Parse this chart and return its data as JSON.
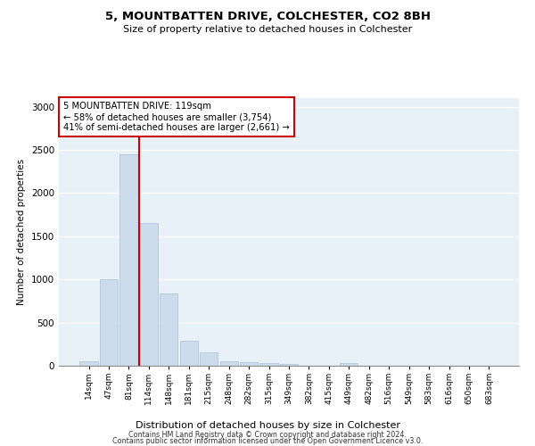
{
  "title": "5, MOUNTBATTEN DRIVE, COLCHESTER, CO2 8BH",
  "subtitle": "Size of property relative to detached houses in Colchester",
  "xlabel": "Distribution of detached houses by size in Colchester",
  "ylabel": "Number of detached properties",
  "bar_color": "#ccdcec",
  "bar_edge_color": "#aac0d8",
  "vline_color": "#cc0000",
  "vline_x_index": 3,
  "categories": [
    "14sqm",
    "47sqm",
    "81sqm",
    "114sqm",
    "148sqm",
    "181sqm",
    "215sqm",
    "248sqm",
    "282sqm",
    "315sqm",
    "349sqm",
    "382sqm",
    "415sqm",
    "449sqm",
    "482sqm",
    "516sqm",
    "549sqm",
    "583sqm",
    "616sqm",
    "650sqm",
    "683sqm"
  ],
  "values": [
    50,
    1000,
    2450,
    1650,
    840,
    290,
    150,
    55,
    45,
    30,
    20,
    0,
    0,
    30,
    0,
    0,
    0,
    0,
    0,
    0,
    0
  ],
  "annotation_line1": "5 MOUNTBATTEN DRIVE: 119sqm",
  "annotation_line2": "← 58% of detached houses are smaller (3,754)",
  "annotation_line3": "41% of semi-detached houses are larger (2,661) →",
  "annotation_box_color": "#ffffff",
  "annotation_box_edge": "#cc0000",
  "ylim": [
    0,
    3100
  ],
  "yticks": [
    0,
    500,
    1000,
    1500,
    2000,
    2500,
    3000
  ],
  "footer_line1": "Contains HM Land Registry data © Crown copyright and database right 2024.",
  "footer_line2": "Contains public sector information licensed under the Open Government Licence v3.0.",
  "background_color": "#e8f0f8",
  "grid_color": "#ffffff",
  "fig_facecolor": "#ffffff"
}
